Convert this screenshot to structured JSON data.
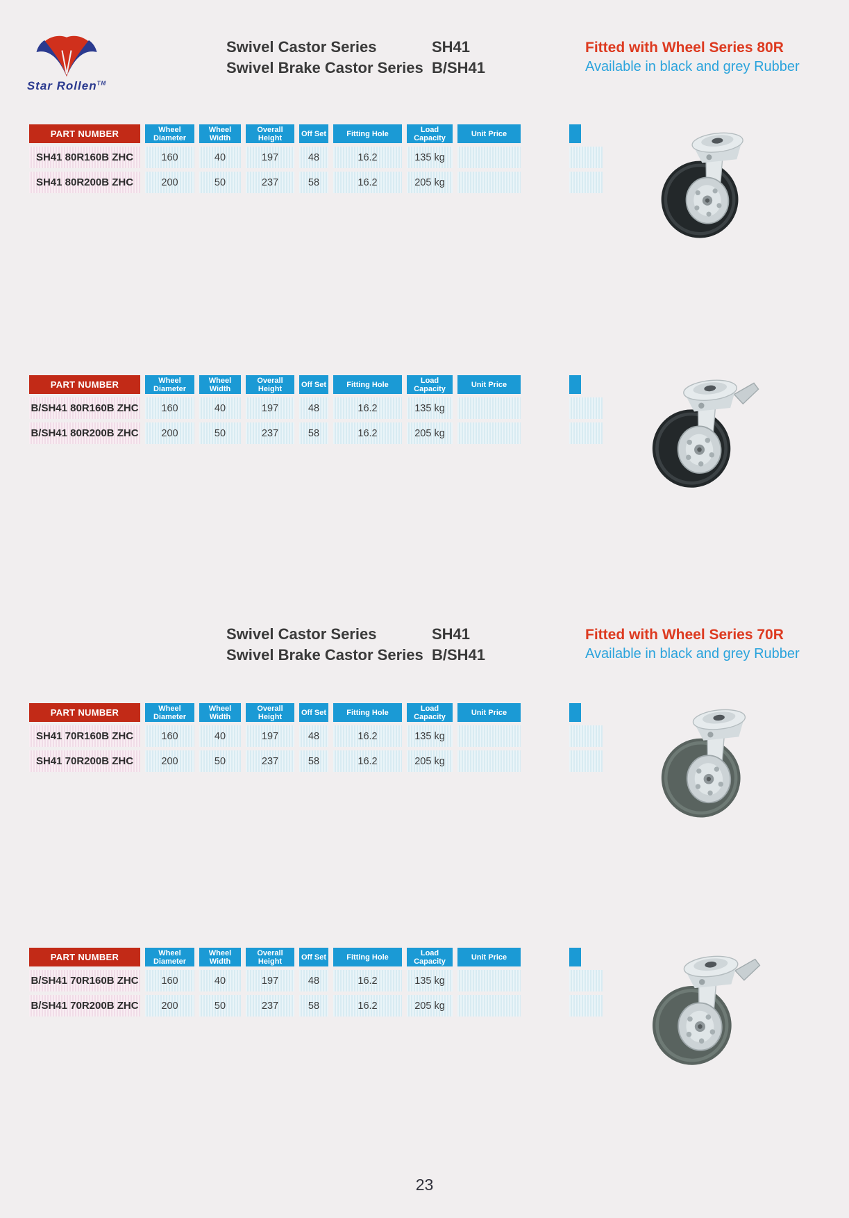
{
  "page": {
    "number": "23"
  },
  "brand": {
    "name": "Star Rollen",
    "tm": "TM"
  },
  "colors": {
    "page_background": "#f1eeef",
    "header_red": "#c22a17",
    "header_blue": "#1b9ad5",
    "accent_red": "#dd3a20",
    "accent_blue": "#2aa3dc",
    "logo_blue": "#2b3a8f",
    "logo_red": "#d0301c"
  },
  "table_headers": [
    "PART NUMBER",
    "Wheel Diameter",
    "Wheel Width",
    "Overall Height",
    "Off Set",
    "Fitting Hole",
    "Load Capacity",
    "Unit Price"
  ],
  "sections": [
    {
      "series_label_1": "Swivel Castor Series",
      "series_code_1": "SH41",
      "series_label_2": "Swivel Brake Castor Series",
      "series_code_2": "B/SH41",
      "fitted_with": "Fitted with Wheel Series 80R",
      "availability": "Available in black and grey Rubber",
      "tables": [
        {
          "rows": [
            [
              "SH41 80R160B ZHC",
              "160",
              "40",
              "197",
              "48",
              "16.2",
              "135 kg",
              ""
            ],
            [
              "SH41 80R200B ZHC",
              "200",
              "50",
              "237",
              "58",
              "16.2",
              "205 kg",
              ""
            ]
          ]
        },
        {
          "rows": [
            [
              "B/SH41 80R160B ZHC",
              "160",
              "40",
              "197",
              "48",
              "16.2",
              "135 kg",
              ""
            ],
            [
              "B/SH41 80R200B ZHC",
              "200",
              "50",
              "237",
              "58",
              "16.2",
              "205 kg",
              ""
            ]
          ]
        }
      ]
    },
    {
      "series_label_1": "Swivel Castor Series",
      "series_code_1": "SH41",
      "series_label_2": "Swivel Brake Castor Series",
      "series_code_2": "B/SH41",
      "fitted_with": "Fitted with Wheel Series 70R",
      "availability": "Available in black and grey Rubber",
      "tables": [
        {
          "rows": [
            [
              "SH41 70R160B ZHC",
              "160",
              "40",
              "197",
              "48",
              "16.2",
              "135 kg",
              ""
            ],
            [
              "SH41 70R200B ZHC",
              "200",
              "50",
              "237",
              "58",
              "16.2",
              "205 kg",
              ""
            ]
          ]
        },
        {
          "rows": [
            [
              "B/SH41 70R160B ZHC",
              "160",
              "40",
              "197",
              "48",
              "16.2",
              "135 kg",
              ""
            ],
            [
              "B/SH41 70R200B ZHC",
              "200",
              "50",
              "237",
              "58",
              "16.2",
              "205 kg",
              ""
            ]
          ]
        }
      ]
    }
  ]
}
